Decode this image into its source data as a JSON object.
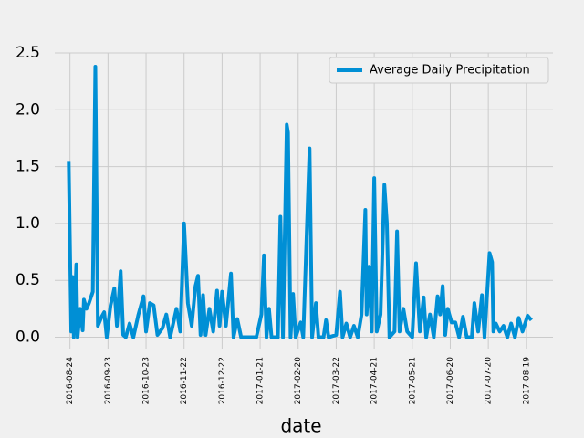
{
  "chart_data": {
    "type": "line",
    "xlabel": "date",
    "legend_loc": "upper right",
    "grid": true,
    "xlim": [
      "2016-08-12",
      "2017-09-09"
    ],
    "ylim": [
      -0.1,
      2.5
    ],
    "xticks": [
      "2016-08-24",
      "2016-09-23",
      "2016-10-23",
      "2016-11-22",
      "2016-12-22",
      "2017-01-21",
      "2017-02-20",
      "2017-03-22",
      "2017-04-21",
      "2017-05-21",
      "2017-06-20",
      "2017-07-20",
      "2017-08-19"
    ],
    "yticks": [
      {
        "value": 0,
        "label": "0.0"
      },
      0.5,
      {
        "value": 1,
        "label": "1.0"
      },
      1.5,
      {
        "value": 2,
        "label": "2.0"
      },
      2.5
    ],
    "x": [
      "2016-08-23",
      "2016-08-25",
      "2016-08-26",
      "2016-08-27",
      "2016-08-29",
      "2016-08-30",
      "2016-09-01",
      "2016-09-03",
      "2016-09-04",
      "2016-09-06",
      "2016-09-08",
      "2016-09-11",
      "2016-09-13",
      "2016-09-15",
      "2016-09-18",
      "2016-09-20",
      "2016-09-22",
      "2016-09-25",
      "2016-09-28",
      "2016-09-30",
      "2016-10-03",
      "2016-10-05",
      "2016-10-07",
      "2016-10-10",
      "2016-10-13",
      "2016-10-17",
      "2016-10-21",
      "2016-10-23",
      "2016-10-26",
      "2016-10-29",
      "2016-11-01",
      "2016-11-05",
      "2016-11-08",
      "2016-11-11",
      "2016-11-16",
      "2016-11-19",
      "2016-11-22",
      "2016-11-25",
      "2016-11-28",
      "2016-12-01",
      "2016-12-03",
      "2016-12-05",
      "2016-12-07",
      "2016-12-09",
      "2016-12-12",
      "2016-12-15",
      "2016-12-18",
      "2016-12-20",
      "2016-12-22",
      "2016-12-25",
      "2016-12-29",
      "2016-12-31",
      "2017-01-03",
      "2017-01-06",
      "2017-01-12",
      "2017-01-18",
      "2017-01-22",
      "2017-01-24",
      "2017-01-26",
      "2017-01-28",
      "2017-01-30",
      "2017-02-04",
      "2017-02-06",
      "2017-02-08",
      "2017-02-11",
      "2017-02-12",
      "2017-02-14",
      "2017-02-16",
      "2017-02-18",
      "2017-02-22",
      "2017-02-24",
      "2017-03-01",
      "2017-03-03",
      "2017-03-06",
      "2017-03-08",
      "2017-03-12",
      "2017-03-14",
      "2017-03-16",
      "2017-03-22",
      "2017-03-25",
      "2017-03-27",
      "2017-03-30",
      "2017-04-02",
      "2017-04-05",
      "2017-04-08",
      "2017-04-11",
      "2017-04-14",
      "2017-04-15",
      "2017-04-17",
      "2017-04-19",
      "2017-04-21",
      "2017-04-23",
      "2017-04-26",
      "2017-04-29",
      "2017-05-01",
      "2017-05-03",
      "2017-05-07",
      "2017-05-09",
      "2017-05-11",
      "2017-05-14",
      "2017-05-17",
      "2017-05-21",
      "2017-05-24",
      "2017-05-27",
      "2017-05-30",
      "2017-06-01",
      "2017-06-04",
      "2017-06-07",
      "2017-06-10",
      "2017-06-12",
      "2017-06-14",
      "2017-06-16",
      "2017-06-18",
      "2017-06-21",
      "2017-06-24",
      "2017-06-27",
      "2017-06-30",
      "2017-07-03",
      "2017-07-07",
      "2017-07-09",
      "2017-07-12",
      "2017-07-15",
      "2017-07-17",
      "2017-07-21",
      "2017-07-23",
      "2017-07-24",
      "2017-07-26",
      "2017-07-29",
      "2017-08-01",
      "2017-08-04",
      "2017-08-07",
      "2017-08-10",
      "2017-08-13",
      "2017-08-16",
      "2017-08-20",
      "2017-08-23"
    ],
    "series": [
      {
        "name": "Average Daily Precipitation",
        "color": "#008fd5",
        "values": [
          1.55,
          0.05,
          0.53,
          0.0,
          0.64,
          0.0,
          0.25,
          0.06,
          0.33,
          0.25,
          0.3,
          0.4,
          2.38,
          0.1,
          0.18,
          0.22,
          0.0,
          0.28,
          0.43,
          0.1,
          0.58,
          0.02,
          0.0,
          0.12,
          0.0,
          0.2,
          0.36,
          0.05,
          0.3,
          0.28,
          0.02,
          0.08,
          0.2,
          0.0,
          0.25,
          0.05,
          1.0,
          0.3,
          0.1,
          0.45,
          0.54,
          0.02,
          0.37,
          0.02,
          0.25,
          0.05,
          0.41,
          0.1,
          0.4,
          0.1,
          0.56,
          0.0,
          0.16,
          0.0,
          0.0,
          0.0,
          0.2,
          0.72,
          0.0,
          0.25,
          0.0,
          0.0,
          1.06,
          0.0,
          1.87,
          1.8,
          0.0,
          0.38,
          0.0,
          0.13,
          0.0,
          1.66,
          0.0,
          0.3,
          0.0,
          0.0,
          0.15,
          0.0,
          0.02,
          0.4,
          0.0,
          0.12,
          0.0,
          0.1,
          0.0,
          0.2,
          1.12,
          0.2,
          0.62,
          0.05,
          1.4,
          0.05,
          0.2,
          1.34,
          1.0,
          0.0,
          0.05,
          0.93,
          0.05,
          0.25,
          0.05,
          0.0,
          0.65,
          0.05,
          0.35,
          0.0,
          0.2,
          0.0,
          0.36,
          0.2,
          0.45,
          0.02,
          0.25,
          0.13,
          0.13,
          0.0,
          0.18,
          0.0,
          0.0,
          0.3,
          0.05,
          0.37,
          0.0,
          0.74,
          0.66,
          0.05,
          0.12,
          0.05,
          0.1,
          0.0,
          0.12,
          0.0,
          0.17,
          0.05,
          0.19,
          0.15
        ]
      }
    ]
  }
}
